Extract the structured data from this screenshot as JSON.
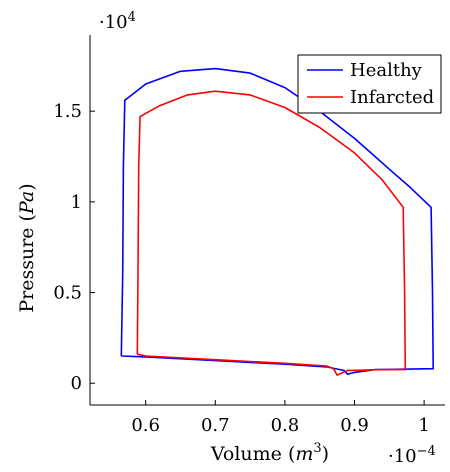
{
  "chart_data": {
    "type": "line",
    "title": "",
    "xlabel": "Volume",
    "xlabel_unit": "m",
    "xlabel_unit_exp": "3",
    "ylabel": "Pressure",
    "ylabel_unit": "Pa",
    "x_multiplier": {
      "base": "·10",
      "exp": "−4"
    },
    "y_multiplier": {
      "base": "·10",
      "exp": "4"
    },
    "xlim": [
      0.52,
      1.03
    ],
    "ylim": [
      -0.12,
      1.92
    ],
    "x_ticks": [
      {
        "value": 0.6,
        "label": "0.6"
      },
      {
        "value": 0.7,
        "label": "0.7"
      },
      {
        "value": 0.8,
        "label": "0.8"
      },
      {
        "value": 0.9,
        "label": "0.9"
      },
      {
        "value": 1.0,
        "label": "1"
      }
    ],
    "y_ticks": [
      {
        "value": 0,
        "label": "0"
      },
      {
        "value": 0.5,
        "label": "0.5"
      },
      {
        "value": 1.0,
        "label": "1"
      },
      {
        "value": 1.5,
        "label": "1.5"
      }
    ],
    "grid": false,
    "legend": "top-right",
    "series": [
      {
        "name": "Healthy",
        "color": "#0000ff",
        "points": [
          [
            0.565,
            0.15
          ],
          [
            0.567,
            0.6
          ],
          [
            0.568,
            1.2
          ],
          [
            0.57,
            1.56
          ],
          [
            0.6,
            1.65
          ],
          [
            0.65,
            1.72
          ],
          [
            0.7,
            1.735
          ],
          [
            0.75,
            1.71
          ],
          [
            0.8,
            1.63
          ],
          [
            0.85,
            1.5
          ],
          [
            0.9,
            1.35
          ],
          [
            0.95,
            1.18
          ],
          [
            0.98,
            1.08
          ],
          [
            1.01,
            0.97
          ],
          [
            1.012,
            0.5
          ],
          [
            1.013,
            0.08
          ],
          [
            0.98,
            0.078
          ],
          [
            0.93,
            0.075
          ],
          [
            0.9,
            0.06
          ],
          [
            0.89,
            0.05
          ],
          [
            0.885,
            0.07
          ],
          [
            0.86,
            0.09
          ],
          [
            0.8,
            0.105
          ],
          [
            0.7,
            0.125
          ],
          [
            0.6,
            0.145
          ],
          [
            0.565,
            0.15
          ]
        ]
      },
      {
        "name": "Infarcted",
        "color": "#ff0000",
        "points": [
          [
            0.588,
            0.16
          ],
          [
            0.589,
            0.6
          ],
          [
            0.59,
            1.2
          ],
          [
            0.592,
            1.47
          ],
          [
            0.62,
            1.53
          ],
          [
            0.66,
            1.59
          ],
          [
            0.7,
            1.61
          ],
          [
            0.75,
            1.59
          ],
          [
            0.8,
            1.52
          ],
          [
            0.85,
            1.41
          ],
          [
            0.9,
            1.27
          ],
          [
            0.94,
            1.12
          ],
          [
            0.97,
            0.97
          ],
          [
            0.972,
            0.5
          ],
          [
            0.973,
            0.075
          ],
          [
            0.94,
            0.075
          ],
          [
            0.91,
            0.072
          ],
          [
            0.89,
            0.07
          ],
          [
            0.875,
            0.045
          ],
          [
            0.87,
            0.08
          ],
          [
            0.86,
            0.095
          ],
          [
            0.8,
            0.11
          ],
          [
            0.7,
            0.13
          ],
          [
            0.6,
            0.15
          ],
          [
            0.588,
            0.16
          ]
        ]
      }
    ]
  }
}
